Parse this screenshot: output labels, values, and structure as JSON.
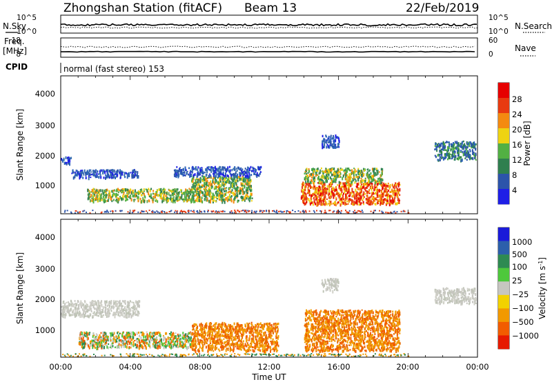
{
  "header": {
    "station": "Zhongshan Station (fitACF)",
    "beam": "Beam 13",
    "date": "22/Feb/2019"
  },
  "noise_panel": {
    "left_label": "N.Sky",
    "right_label": "N.Search",
    "left_ticks": [
      "10^5",
      "10^0"
    ],
    "right_ticks": [
      "10^5",
      "10^0"
    ]
  },
  "freq_panel": {
    "left_label_line1": "Freq.",
    "left_label_line2": "[MHz]",
    "right_label": "Nave",
    "left_ticks": [
      "18",
      "8"
    ],
    "right_ticks": [
      "60",
      "0"
    ],
    "cpid_label": "CPID",
    "mode_text": "normal (fast stereo) 153"
  },
  "chart_data": [
    {
      "type": "heatmap",
      "title": "",
      "quantity": "Power",
      "xlabel": "Time UT",
      "ylabel": "Slant Range [km]",
      "ylim": [
        180,
        4550
      ],
      "y_ticks": [
        "1000",
        "2000",
        "3000",
        "4000"
      ],
      "colorbar_label": "Power [dB]",
      "colorbar_ticks": [
        "4",
        "8",
        "12",
        "16",
        "20",
        "24",
        "28"
      ],
      "colorbar_colors": [
        "#1f1fe6",
        "#2c54aa",
        "#2f7f4f",
        "#52b043",
        "#eed312",
        "#f48a10",
        "#e83a10",
        "#e60000"
      ],
      "regions": [
        {
          "t": [
            0.0,
            0.6
          ],
          "r": [
            1800,
            2000
          ],
          "level": "blue"
        },
        {
          "t": [
            0.6,
            4.5
          ],
          "r": [
            1350,
            1600
          ],
          "level": "blue"
        },
        {
          "t": [
            1.5,
            7.5
          ],
          "r": [
            600,
            1000
          ],
          "level": "green-yellow"
        },
        {
          "t": [
            7.5,
            11.0
          ],
          "r": [
            600,
            1400
          ],
          "level": "green-orange"
        },
        {
          "t": [
            6.5,
            11.5
          ],
          "r": [
            1400,
            1700
          ],
          "level": "blue"
        },
        {
          "t": [
            13.8,
            19.5
          ],
          "r": [
            500,
            1200
          ],
          "level": "orange-red"
        },
        {
          "t": [
            14.0,
            18.5
          ],
          "r": [
            1200,
            1650
          ],
          "level": "green-orange"
        },
        {
          "t": [
            15.0,
            16.0
          ],
          "r": [
            2300,
            2700
          ],
          "level": "blue"
        },
        {
          "t": [
            21.5,
            23.9
          ],
          "r": [
            1900,
            2500
          ],
          "level": "blue-green"
        }
      ]
    },
    {
      "type": "heatmap",
      "title": "",
      "quantity": "Velocity",
      "xlabel": "Time UT",
      "ylabel": "Slant Range [km]",
      "ylim": [
        180,
        4550
      ],
      "y_ticks": [
        "1000",
        "2000",
        "3000",
        "4000"
      ],
      "colorbar_label": "Velocity [m s-1]",
      "colorbar_label_html": "Velocity [m s",
      "colorbar_label_sup": "-1",
      "colorbar_ticks": [
        "1000",
        "500",
        "100",
        "25",
        "−25",
        "−100",
        "−500",
        "−1000"
      ],
      "colorbar_colors": [
        "#1a1ad9",
        "#2c5fab",
        "#2e8a52",
        "#4ec83c",
        "#c6c6c0",
        "#f2d200",
        "#f29900",
        "#f25c00",
        "#e61a00"
      ],
      "regions": [
        {
          "t": [
            0.0,
            4.5
          ],
          "r": [
            1500,
            2000
          ],
          "level": "grey"
        },
        {
          "t": [
            1.0,
            7.5
          ],
          "r": [
            500,
            1000
          ],
          "level": "green-orange"
        },
        {
          "t": [
            7.5,
            12.5
          ],
          "r": [
            400,
            1300
          ],
          "level": "orange"
        },
        {
          "t": [
            14.0,
            19.5
          ],
          "r": [
            400,
            1700
          ],
          "level": "orange"
        },
        {
          "t": [
            15.0,
            16.0
          ],
          "r": [
            2300,
            2700
          ],
          "level": "grey"
        },
        {
          "t": [
            21.5,
            23.9
          ],
          "r": [
            1900,
            2400
          ],
          "level": "grey"
        }
      ]
    }
  ],
  "x_axis": {
    "ticks": [
      "00:00",
      "04:00",
      "08:00",
      "12:00",
      "16:00",
      "20:00",
      "00:00"
    ],
    "label": "Time UT"
  }
}
